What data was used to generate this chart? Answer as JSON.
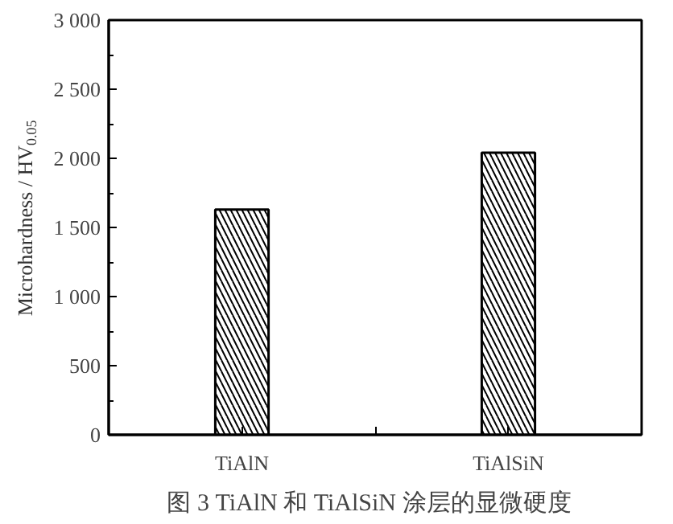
{
  "chart_data": {
    "type": "bar",
    "title": "图 3   TiAlN 和 TiAlSiN 涂层的显微硬度",
    "ylabel": "Microhardness / HV$_{0.05}$",
    "categories": [
      "TiAlN",
      "TiAlSiN"
    ],
    "values": [
      1630,
      2040
    ],
    "color": "#ffffff",
    "ylim": [
      0,
      3000
    ],
    "yticks": [
      {
        "value": 0,
        "label": "0"
      },
      {
        "value": 500,
        "label": "500"
      },
      {
        "value": 1000,
        "label": "1 000"
      },
      {
        "value": 1500,
        "label": "1 500"
      },
      {
        "value": 2000,
        "label": "2 000"
      },
      {
        "value": 2500,
        "label": "2 500"
      },
      {
        "value": 3000,
        "label": "3 000"
      }
    ],
    "grid": false
  }
}
